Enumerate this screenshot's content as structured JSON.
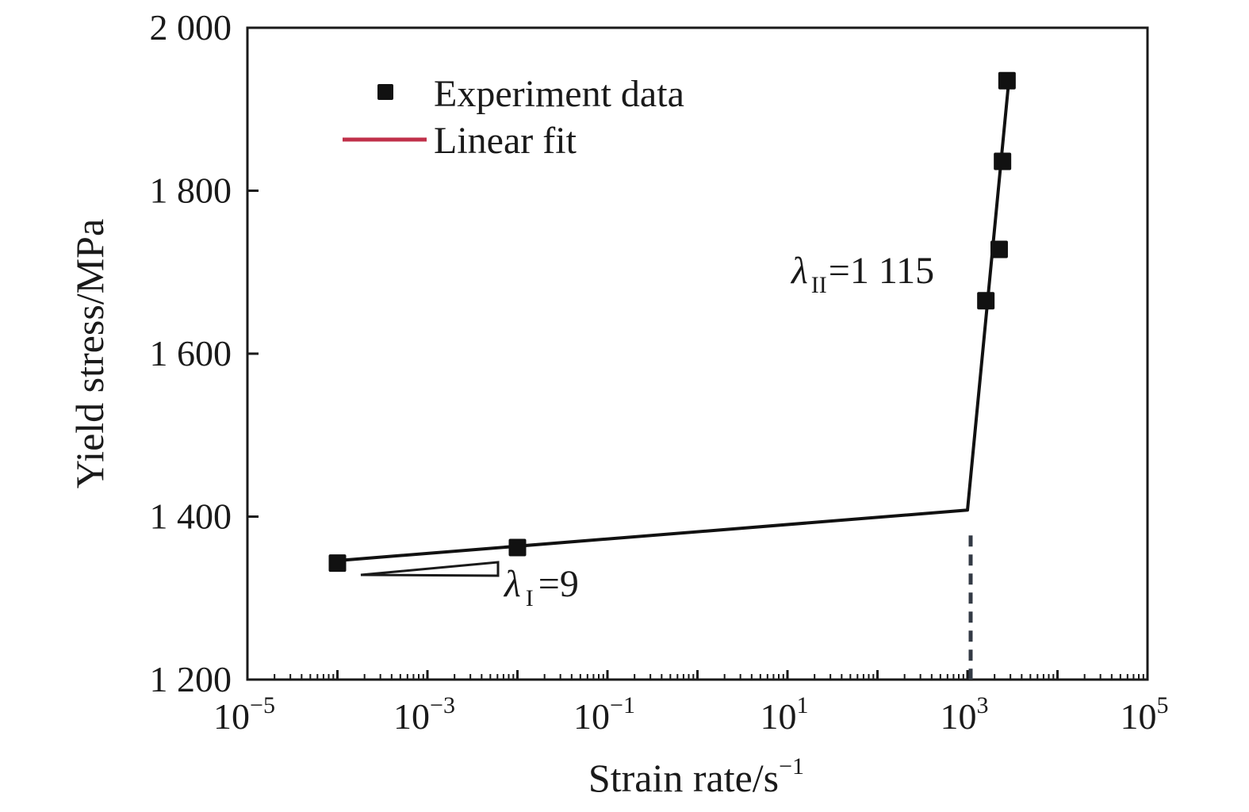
{
  "chart_data": {
    "type": "scatter",
    "xscale": "log",
    "xlabel": "Strain rate/s",
    "xlabel_superscript": "−1",
    "ylabel": "Yield stress/MPa",
    "xlim": [
      1e-05,
      100000
    ],
    "ylim": [
      1200,
      2000
    ],
    "x_ticks": [
      {
        "value": 1e-05,
        "base": "10",
        "exp": "−5"
      },
      {
        "value": 0.001,
        "base": "10",
        "exp": "−3"
      },
      {
        "value": 0.1,
        "base": "10",
        "exp": "−1"
      },
      {
        "value": 10,
        "base": "10",
        "exp": "1"
      },
      {
        "value": 1000,
        "base": "10",
        "exp": "3"
      },
      {
        "value": 100000,
        "base": "10",
        "exp": "5"
      }
    ],
    "y_ticks": [
      {
        "value": 1200,
        "label": "1 200"
      },
      {
        "value": 1400,
        "label": "1 400"
      },
      {
        "value": 1600,
        "label": "1 600"
      },
      {
        "value": 1800,
        "label": "1 800"
      },
      {
        "value": 2000,
        "label": "2 000"
      }
    ],
    "legend_position": "top-left",
    "series": [
      {
        "name": "Experiment data",
        "marker": "square",
        "color": "#111111",
        "points": [
          {
            "x": 0.0001,
            "y": 1343
          },
          {
            "x": 0.01,
            "y": 1362
          },
          {
            "x": 1600,
            "y": 1665
          },
          {
            "x": 2250,
            "y": 1728
          },
          {
            "x": 2450,
            "y": 1836
          },
          {
            "x": 2750,
            "y": 1935
          }
        ]
      },
      {
        "name": "Linear fit",
        "legend_color": "#c0304a",
        "color": "#111111",
        "points": [
          {
            "x": 0.0001,
            "y": 1346
          },
          {
            "x": 1000,
            "y": 1408
          },
          {
            "x": 2850,
            "y": 1930
          }
        ]
      }
    ],
    "breakpoint_x": 1000,
    "annotations": [
      {
        "id": "lambda1",
        "symbol": "λ",
        "subscript": "I",
        "text": "=9"
      },
      {
        "id": "lambda2",
        "symbol": "λ",
        "subscript": "II",
        "text": "=1 115"
      }
    ]
  }
}
